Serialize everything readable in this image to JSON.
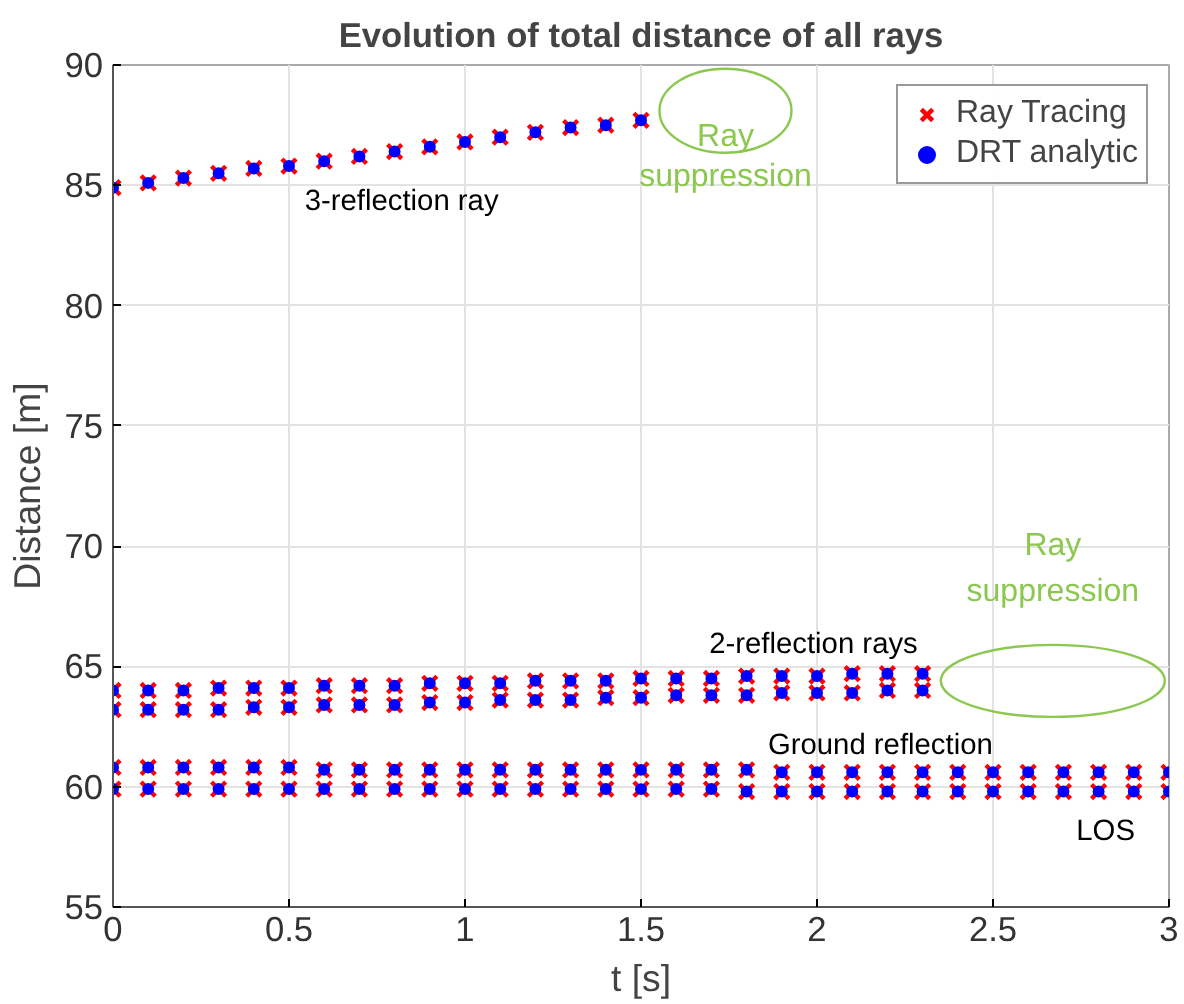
{
  "chart_data": {
    "type": "scatter",
    "title": "Evolution of total distance of all rays",
    "xlabel": "t [s]",
    "ylabel": "Distance [m]",
    "xlim": [
      0,
      3
    ],
    "xticks": [
      0,
      0.5,
      1,
      1.5,
      2,
      2.5,
      3
    ],
    "ylim": [
      55,
      90
    ],
    "yticks": [
      55,
      60,
      65,
      70,
      75,
      80,
      85,
      90
    ],
    "grid": true,
    "legend": "top right",
    "series": [
      {
        "name": "Ray Tracing",
        "color": "#ff0000",
        "marker": "cross",
        "x": [
          0,
          0.1,
          0.2,
          0.3,
          0.4,
          0.5,
          0.6,
          0.7,
          0.8,
          0.9,
          1,
          1.1,
          1.2,
          1.3,
          1.4,
          1.5,
          0,
          0.1,
          0.2,
          0.3,
          0.4,
          0.5,
          0.6,
          0.7,
          0.8,
          0.9,
          1,
          1.1,
          1.2,
          1.3,
          1.4,
          1.5,
          1.6,
          1.7,
          1.8,
          1.9,
          2,
          2.1,
          2.2,
          2.3,
          0,
          0.1,
          0.2,
          0.3,
          0.4,
          0.5,
          0.6,
          0.7,
          0.8,
          0.9,
          1,
          1.1,
          1.2,
          1.3,
          1.4,
          1.5,
          1.6,
          1.7,
          1.8,
          1.9,
          2,
          2.1,
          2.2,
          2.3,
          0,
          0.1,
          0.2,
          0.3,
          0.4,
          0.5,
          0.6,
          0.7,
          0.8,
          0.9,
          1,
          1.1,
          1.2,
          1.3,
          1.4,
          1.5,
          1.6,
          1.7,
          1.8,
          1.9,
          2,
          2.1,
          2.2,
          2.3,
          2.4,
          2.5,
          2.6,
          2.7,
          2.8,
          2.9,
          3,
          0,
          0.1,
          0.2,
          0.3,
          0.4,
          0.5,
          0.6,
          0.7,
          0.8,
          0.9,
          1,
          1.1,
          1.2,
          1.3,
          1.4,
          1.5,
          1.6,
          1.7,
          1.8,
          1.9,
          2,
          2.1,
          2.2,
          2.3,
          2.4,
          2.5,
          2.6,
          2.7,
          2.8,
          2.9,
          3
        ],
        "values": [
          84.9,
          85.1,
          85.3,
          85.5,
          85.7,
          85.8,
          86.0,
          86.2,
          86.4,
          86.6,
          86.8,
          87.0,
          87.2,
          87.4,
          87.5,
          87.7,
          64.0,
          64.0,
          64.0,
          64.1,
          64.1,
          64.1,
          64.2,
          64.2,
          64.2,
          64.3,
          64.3,
          64.3,
          64.4,
          64.4,
          64.4,
          64.5,
          64.5,
          64.5,
          64.6,
          64.6,
          64.6,
          64.7,
          64.7,
          64.7,
          63.2,
          63.2,
          63.2,
          63.2,
          63.3,
          63.3,
          63.4,
          63.4,
          63.4,
          63.5,
          63.5,
          63.6,
          63.6,
          63.6,
          63.7,
          63.7,
          63.8,
          63.8,
          63.8,
          63.9,
          63.9,
          63.9,
          64.0,
          64.0,
          60.8,
          60.8,
          60.8,
          60.8,
          60.8,
          60.8,
          60.7,
          60.7,
          60.7,
          60.7,
          60.7,
          60.7,
          60.7,
          60.7,
          60.7,
          60.7,
          60.7,
          60.7,
          60.7,
          60.6,
          60.6,
          60.6,
          60.6,
          60.6,
          60.6,
          60.6,
          60.6,
          60.6,
          60.6,
          60.6,
          60.6,
          59.9,
          59.9,
          59.9,
          59.9,
          59.9,
          59.9,
          59.9,
          59.9,
          59.9,
          59.9,
          59.9,
          59.9,
          59.9,
          59.9,
          59.9,
          59.9,
          59.9,
          59.9,
          59.8,
          59.8,
          59.8,
          59.8,
          59.8,
          59.8,
          59.8,
          59.8,
          59.8,
          59.8,
          59.8,
          59.8,
          59.8
        ]
      },
      {
        "name": "DRT analytic",
        "color": "#0000ff",
        "marker": "circle",
        "x": [
          0,
          0.1,
          0.2,
          0.3,
          0.4,
          0.5,
          0.6,
          0.7,
          0.8,
          0.9,
          1,
          1.1,
          1.2,
          1.3,
          1.4,
          1.5,
          0,
          0.1,
          0.2,
          0.3,
          0.4,
          0.5,
          0.6,
          0.7,
          0.8,
          0.9,
          1,
          1.1,
          1.2,
          1.3,
          1.4,
          1.5,
          1.6,
          1.7,
          1.8,
          1.9,
          2,
          2.1,
          2.2,
          2.3,
          0,
          0.1,
          0.2,
          0.3,
          0.4,
          0.5,
          0.6,
          0.7,
          0.8,
          0.9,
          1,
          1.1,
          1.2,
          1.3,
          1.4,
          1.5,
          1.6,
          1.7,
          1.8,
          1.9,
          2,
          2.1,
          2.2,
          2.3,
          0,
          0.1,
          0.2,
          0.3,
          0.4,
          0.5,
          0.6,
          0.7,
          0.8,
          0.9,
          1,
          1.1,
          1.2,
          1.3,
          1.4,
          1.5,
          1.6,
          1.7,
          1.8,
          1.9,
          2,
          2.1,
          2.2,
          2.3,
          2.4,
          2.5,
          2.6,
          2.7,
          2.8,
          2.9,
          3,
          0,
          0.1,
          0.2,
          0.3,
          0.4,
          0.5,
          0.6,
          0.7,
          0.8,
          0.9,
          1,
          1.1,
          1.2,
          1.3,
          1.4,
          1.5,
          1.6,
          1.7,
          1.8,
          1.9,
          2,
          2.1,
          2.2,
          2.3,
          2.4,
          2.5,
          2.6,
          2.7,
          2.8,
          2.9,
          3
        ],
        "values": [
          84.9,
          85.1,
          85.3,
          85.5,
          85.7,
          85.8,
          86.0,
          86.2,
          86.4,
          86.6,
          86.8,
          87.0,
          87.2,
          87.4,
          87.5,
          87.7,
          64.0,
          64.0,
          64.0,
          64.1,
          64.1,
          64.1,
          64.2,
          64.2,
          64.2,
          64.3,
          64.3,
          64.3,
          64.4,
          64.4,
          64.4,
          64.5,
          64.5,
          64.5,
          64.6,
          64.6,
          64.6,
          64.7,
          64.7,
          64.7,
          63.2,
          63.2,
          63.2,
          63.2,
          63.3,
          63.3,
          63.4,
          63.4,
          63.4,
          63.5,
          63.5,
          63.6,
          63.6,
          63.6,
          63.7,
          63.7,
          63.8,
          63.8,
          63.8,
          63.9,
          63.9,
          63.9,
          64.0,
          64.0,
          60.8,
          60.8,
          60.8,
          60.8,
          60.8,
          60.8,
          60.7,
          60.7,
          60.7,
          60.7,
          60.7,
          60.7,
          60.7,
          60.7,
          60.7,
          60.7,
          60.7,
          60.7,
          60.7,
          60.6,
          60.6,
          60.6,
          60.6,
          60.6,
          60.6,
          60.6,
          60.6,
          60.6,
          60.6,
          60.6,
          60.6,
          59.9,
          59.9,
          59.9,
          59.9,
          59.9,
          59.9,
          59.9,
          59.9,
          59.9,
          59.9,
          59.9,
          59.9,
          59.9,
          59.9,
          59.9,
          59.9,
          59.9,
          59.9,
          59.8,
          59.8,
          59.8,
          59.8,
          59.8,
          59.8,
          59.8,
          59.8,
          59.8,
          59.8,
          59.8,
          59.8,
          59.8
        ]
      }
    ],
    "annotations": [
      "3-reflection ray",
      "Ray suppression",
      "2-reflection rays",
      "Ray suppression",
      "Ground reflection",
      "LOS"
    ]
  }
}
